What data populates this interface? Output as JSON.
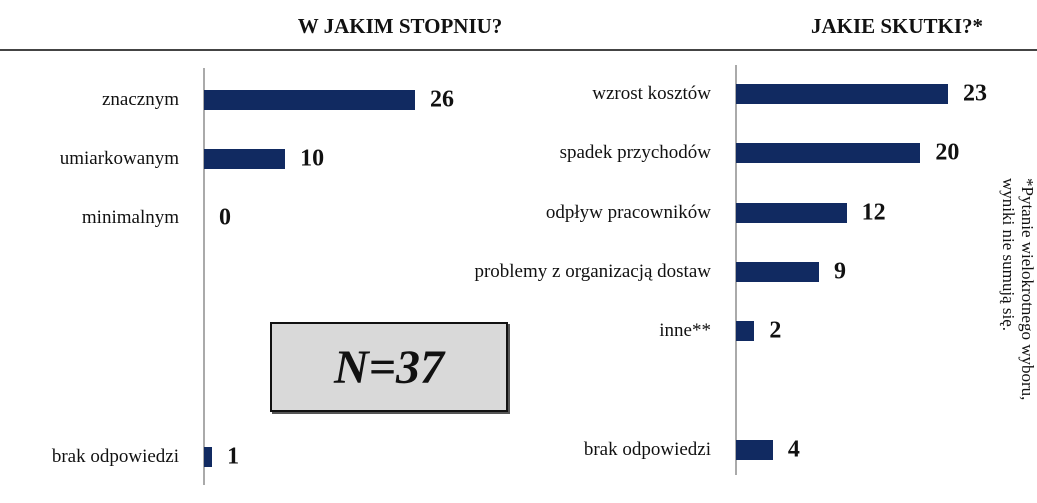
{
  "chart_data": [
    {
      "type": "bar",
      "title": "W JAKIM STOPNIU?",
      "categories": [
        "znacznym",
        "umiarkowanym",
        "minimalnym",
        "brak odpowiedzi"
      ],
      "values": [
        26,
        10,
        0,
        1
      ],
      "color": "#112a61",
      "annotation": "N=37"
    },
    {
      "type": "bar",
      "title": "JAKIE SKUTKI?*",
      "categories": [
        "wzrost kosztów",
        "spadek przychodów",
        "odpływ pracowników",
        "problemy z organizacją dostaw",
        "inne**",
        "brak odpowiedzi"
      ],
      "values": [
        23,
        20,
        12,
        9,
        2,
        4
      ],
      "color": "#112a61",
      "note": [
        "*Pytanie wielokrotnego wyboru,",
        "wyniki nie sumują się."
      ]
    }
  ]
}
